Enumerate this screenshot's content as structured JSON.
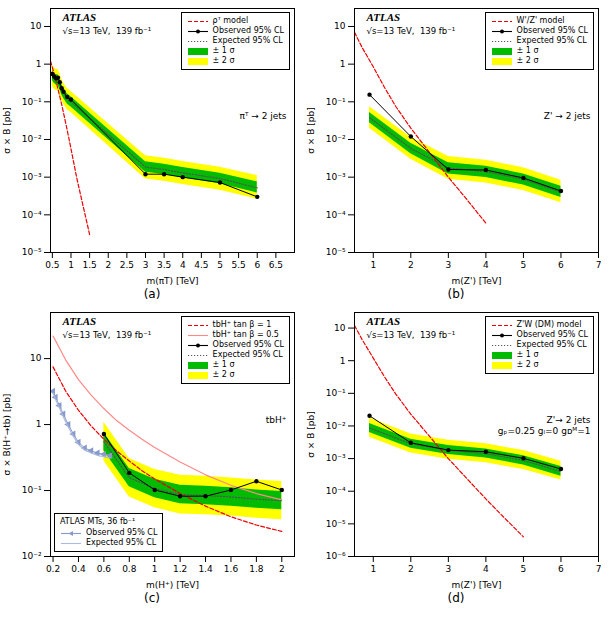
{
  "chart_data": [
    {
      "type": "line",
      "caption": "(a)",
      "annotations": [
        "ATLAS"
      ],
      "subtitle": "√s=13 TeV,  139 fb⁻¹",
      "process_label": [
        "πᵀ → 2 jets"
      ],
      "x_label": "m(πT) [TeV]",
      "y_label": "σ × B [pb]",
      "log": "y",
      "grid": false,
      "legend": "upper right",
      "xlim": [
        0.45,
        7.0
      ],
      "xticks": [
        0.5,
        1,
        1.5,
        2,
        2.5,
        3,
        3.5,
        4,
        4.5,
        5,
        5.5,
        6,
        6.5
      ],
      "ylim": [
        1e-05,
        30
      ],
      "yticks": [
        {
          "value": 1e-05,
          "label": "10⁻⁵"
        },
        {
          "value": 0.0001,
          "label": "10⁻⁴"
        },
        {
          "value": 0.001,
          "label": "10⁻³"
        },
        {
          "value": 0.01,
          "label": "10⁻²"
        },
        {
          "value": 0.1,
          "label": "10⁻¹"
        },
        1,
        10
      ],
      "series": [
        {
          "name": "ρᵀ model",
          "type": "line",
          "color": "#ee0000",
          "line_style": "dashed",
          "x": [
            0.45,
            0.55,
            0.65,
            0.75,
            0.85,
            0.95,
            1.05,
            1.15,
            1.3,
            1.5
          ],
          "values": [
            1.2,
            0.55,
            0.22,
            0.085,
            0.03,
            0.01,
            0.0032,
            0.001,
            0.00022,
            3e-05
          ]
        },
        {
          "name": "Observed 95% CL",
          "type": "line",
          "color": "#000000",
          "line_style": "solid",
          "marker": "circle",
          "x": [
            0.5,
            0.55,
            0.6,
            0.65,
            0.7,
            0.75,
            0.8,
            0.9,
            1.0,
            3.0,
            3.5,
            4.0,
            5.0,
            6.0
          ],
          "values": [
            0.55,
            0.47,
            0.42,
            0.44,
            0.33,
            0.23,
            0.185,
            0.135,
            0.115,
            0.0012,
            0.0012,
            0.001,
            0.00072,
            0.0003
          ]
        },
        {
          "name": "Expected 95% CL",
          "type": "line",
          "color": "#555555",
          "line_style": "dotted",
          "x": [
            0.5,
            0.55,
            0.6,
            0.65,
            0.7,
            0.75,
            0.8,
            0.9,
            1.0,
            3.0,
            3.5,
            4.0,
            5.0,
            6.0
          ],
          "values": [
            0.5,
            0.42,
            0.38,
            0.38,
            0.3,
            0.21,
            0.17,
            0.12,
            0.1,
            0.00185,
            0.0016,
            0.0013,
            0.00092,
            0.00052
          ]
        },
        {
          "name": "± 1 σ",
          "type": "band",
          "color": "#00bb00",
          "x": [
            0.5,
            0.55,
            0.6,
            0.65,
            0.7,
            0.75,
            0.8,
            0.9,
            1.0,
            3.0,
            3.5,
            4.0,
            5.0,
            6.0
          ],
          "lower": [
            0.37,
            0.31,
            0.28,
            0.28,
            0.22,
            0.155,
            0.124,
            0.088,
            0.073,
            0.00135,
            0.00117,
            0.00095,
            0.00067,
            0.00038
          ],
          "upper": [
            0.68,
            0.57,
            0.52,
            0.52,
            0.41,
            0.29,
            0.23,
            0.163,
            0.136,
            0.00255,
            0.0022,
            0.0018,
            0.00127,
            0.00075
          ]
        },
        {
          "name": "± 2 σ",
          "type": "band",
          "color": "#ffff00",
          "x": [
            0.5,
            0.55,
            0.6,
            0.65,
            0.7,
            0.75,
            0.8,
            0.9,
            1.0,
            3.0,
            3.5,
            4.0,
            5.0,
            6.0
          ],
          "lower": [
            0.26,
            0.22,
            0.2,
            0.2,
            0.16,
            0.11,
            0.088,
            0.062,
            0.052,
            0.0009,
            0.00078,
            0.00064,
            0.00045,
            0.00026
          ],
          "upper": [
            0.95,
            0.79,
            0.72,
            0.72,
            0.57,
            0.4,
            0.318,
            0.225,
            0.188,
            0.00368,
            0.00319,
            0.0026,
            0.00184,
            0.0011
          ]
        }
      ]
    },
    {
      "type": "line",
      "caption": "(b)",
      "annotations": [
        "ATLAS"
      ],
      "subtitle": "√s=13 TeV,  139 fb⁻¹",
      "process_label": [
        "Z' → 2 jets"
      ],
      "x_label": "m(Z') [TeV]",
      "y_label": "σ × B [pb]",
      "log": "y",
      "grid": false,
      "legend": "upper right",
      "xlim": [
        0.5,
        7.0
      ],
      "xticks": [
        1,
        2,
        3,
        4,
        5,
        6,
        7
      ],
      "ylim": [
        1e-05,
        30
      ],
      "yticks": [
        {
          "value": 1e-05,
          "label": "10⁻⁵"
        },
        {
          "value": 0.0001,
          "label": "10⁻⁴"
        },
        {
          "value": 0.001,
          "label": "10⁻³"
        },
        {
          "value": 0.01,
          "label": "10⁻²"
        },
        {
          "value": 0.1,
          "label": "10⁻¹"
        },
        1,
        10
      ],
      "series": [
        {
          "name": "W'/Z' model",
          "type": "line",
          "color": "#ee0000",
          "line_style": "dashed",
          "x": [
            0.5,
            0.7,
            1.0,
            1.3,
            1.6,
            2.0,
            2.5,
            3.0,
            3.5,
            4.0
          ],
          "values": [
            7.0,
            2.8,
            0.85,
            0.24,
            0.075,
            0.02,
            0.0045,
            0.001,
            0.00025,
            6e-05
          ]
        },
        {
          "name": "Observed 95% CL",
          "type": "line",
          "color": "#000000",
          "line_style": "solid",
          "marker": "circle",
          "x": [
            0.9,
            2.0,
            3.0,
            4.0,
            5.0,
            6.0
          ],
          "values": [
            0.155,
            0.012,
            0.0016,
            0.00155,
            0.00095,
            0.00043
          ]
        },
        {
          "name": "Expected 95% CL",
          "type": "line",
          "color": "#555555",
          "line_style": "dotted",
          "x": [
            0.9,
            2.0,
            3.0,
            4.0,
            5.0,
            6.0
          ],
          "values": [
            0.038,
            0.0058,
            0.00175,
            0.0014,
            0.00088,
            0.0004
          ]
        },
        {
          "name": "± 1 σ",
          "type": "band",
          "color": "#00bb00",
          "x": [
            0.9,
            2.0,
            3.0,
            4.0,
            5.0,
            6.0
          ],
          "lower": [
            0.028,
            0.0042,
            0.00122,
            0.00098,
            0.00062,
            0.00029
          ],
          "upper": [
            0.052,
            0.008,
            0.00243,
            0.00194,
            0.00122,
            0.00057
          ]
        },
        {
          "name": "± 2 σ",
          "type": "band",
          "color": "#ffff00",
          "x": [
            0.9,
            2.0,
            3.0,
            4.0,
            5.0,
            6.0
          ],
          "lower": [
            0.02,
            0.003,
            0.00088,
            0.0007,
            0.00044,
            0.00021
          ],
          "upper": [
            0.074,
            0.0114,
            0.00352,
            0.00281,
            0.00177,
            0.00083
          ]
        }
      ]
    },
    {
      "type": "line",
      "caption": "(c)",
      "annotations": [
        "ATLAS"
      ],
      "subtitle": "√s=13 TeV,  139 fb⁻¹",
      "process_label": [
        "tbH⁺"
      ],
      "x_label": "m(H⁺) [TeV]",
      "y_label": "σ × B(H⁺→tb) [pb]",
      "log": "y",
      "grid": false,
      "legend": "upper right",
      "xlim": [
        0.18,
        2.1
      ],
      "xticks": [
        0.2,
        0.4,
        0.6,
        0.8,
        1,
        1.2,
        1.4,
        1.6,
        1.8,
        2
      ],
      "ylim": [
        0.01,
        50
      ],
      "yticks": [
        {
          "value": 0.01,
          "label": "10⁻²"
        },
        {
          "value": 0.1,
          "label": "10⁻¹"
        },
        1,
        10
      ],
      "series": [
        {
          "name": "tbH⁺ tan β = 1",
          "type": "line",
          "color": "#ee0000",
          "line_style": "dashed",
          "x": [
            0.2,
            0.3,
            0.4,
            0.5,
            0.6,
            0.7,
            0.8,
            0.9,
            1.0,
            1.2,
            1.4,
            1.6,
            1.8,
            2.0
          ],
          "values": [
            7.5,
            3.2,
            1.65,
            0.95,
            0.6,
            0.4,
            0.28,
            0.2,
            0.15,
            0.09,
            0.058,
            0.04,
            0.03,
            0.024
          ]
        },
        {
          "name": "tbH⁺ tan β = 0.5",
          "type": "line",
          "color": "#ff8888",
          "line_style": "solid",
          "x": [
            0.2,
            0.3,
            0.4,
            0.5,
            0.6,
            0.7,
            0.8,
            0.9,
            1.0,
            1.2,
            1.4,
            1.6,
            1.8,
            2.0
          ],
          "values": [
            22.0,
            9.5,
            4.8,
            2.8,
            1.75,
            1.15,
            0.82,
            0.6,
            0.45,
            0.27,
            0.173,
            0.12,
            0.09,
            0.072
          ]
        },
        {
          "name": "Observed 95% CL",
          "type": "line",
          "color": "#000000",
          "line_style": "solid",
          "marker": "circle",
          "x": [
            0.6,
            0.8,
            1.0,
            1.2,
            1.4,
            1.6,
            1.8,
            2.0
          ],
          "values": [
            0.72,
            0.185,
            0.102,
            0.082,
            0.082,
            0.102,
            0.138,
            0.102
          ]
        },
        {
          "name": "Expected 95% CL",
          "type": "line",
          "color": "#555555",
          "line_style": "dotted",
          "x": [
            0.6,
            0.8,
            1.0,
            1.2,
            1.4,
            1.6,
            1.8,
            2.0
          ],
          "values": [
            0.55,
            0.157,
            0.107,
            0.087,
            0.084,
            0.08,
            0.074,
            0.07
          ]
        },
        {
          "name": "± 1 σ",
          "type": "band",
          "color": "#00bb00",
          "x": [
            0.6,
            0.8,
            1.0,
            1.2,
            1.4,
            1.6,
            1.8,
            2.0
          ],
          "lower": [
            0.4,
            0.114,
            0.078,
            0.063,
            0.061,
            0.058,
            0.054,
            0.051
          ],
          "upper": [
            0.76,
            0.216,
            0.148,
            0.12,
            0.116,
            0.11,
            0.102,
            0.097
          ]
        },
        {
          "name": "± 2 σ",
          "type": "band",
          "color": "#ffff00",
          "x": [
            0.6,
            0.8,
            1.0,
            1.2,
            1.4,
            1.6,
            1.8,
            2.0
          ],
          "lower": [
            0.28,
            0.08,
            0.055,
            0.044,
            0.043,
            0.041,
            0.038,
            0.036
          ],
          "upper": [
            1.08,
            0.305,
            0.209,
            0.17,
            0.164,
            0.155,
            0.144,
            0.137
          ]
        },
        {
          "name": "Observed 95% CL",
          "type": "line",
          "color": "#8899cc",
          "line_style": "solid",
          "marker": "triangle-left",
          "legend_group": "ATLAS MTs, 36 fb⁻¹",
          "x": [
            0.2,
            0.22,
            0.25,
            0.28,
            0.32,
            0.36,
            0.4,
            0.45,
            0.5,
            0.55,
            0.6,
            0.65
          ],
          "values": [
            3.2,
            2.6,
            1.95,
            1.45,
            1.0,
            0.72,
            0.54,
            0.44,
            0.4,
            0.37,
            0.355,
            0.34
          ]
        },
        {
          "name": "Expected 95% CL",
          "type": "line",
          "color": "#aabbdd",
          "line_style": "solid",
          "legend_group": "ATLAS MTs, 36 fb⁻¹",
          "x": [
            0.2,
            0.22,
            0.25,
            0.28,
            0.32,
            0.36,
            0.4,
            0.45,
            0.5,
            0.55,
            0.6,
            0.65
          ],
          "values": [
            3.0,
            2.4,
            1.8,
            1.32,
            0.92,
            0.66,
            0.5,
            0.41,
            0.37,
            0.34,
            0.325,
            0.31
          ]
        }
      ]
    },
    {
      "type": "line",
      "caption": "(d)",
      "annotations": [
        "ATLAS"
      ],
      "subtitle": "√s=13 TeV,  139 fb⁻¹",
      "process_label": [
        "Z'→ 2 jets",
        "gₚ=0.25 gₗ=0 gᴅᴹ=1"
      ],
      "x_label": "m(Z') [TeV]",
      "y_label": "σ × B [pb]",
      "log": "y",
      "grid": false,
      "legend": "upper right",
      "xlim": [
        0.5,
        7.0
      ],
      "xticks": [
        1,
        2,
        3,
        4,
        5,
        6,
        7
      ],
      "ylim": [
        1e-06,
        30
      ],
      "yticks": [
        {
          "value": 1e-06,
          "label": "10⁻⁶"
        },
        {
          "value": 1e-05,
          "label": "10⁻⁵"
        },
        {
          "value": 0.0001,
          "label": "10⁻⁴"
        },
        {
          "value": 0.001,
          "label": "10⁻³"
        },
        {
          "value": 0.01,
          "label": "10⁻²"
        },
        {
          "value": 0.1,
          "label": "10⁻¹"
        },
        1,
        10
      ],
      "series": [
        {
          "name": "Z'W (DM) model",
          "type": "line",
          "color": "#ee0000",
          "line_style": "dashed",
          "x": [
            0.5,
            0.7,
            1.0,
            1.3,
            1.6,
            2.0,
            2.5,
            3.0,
            3.5,
            4.0,
            4.5,
            5.0
          ],
          "values": [
            12.0,
            4.5,
            1.2,
            0.32,
            0.095,
            0.023,
            0.0048,
            0.001,
            0.00024,
            5.8e-05,
            1.5e-05,
            4e-06
          ]
        },
        {
          "name": "Observed 95% CL",
          "type": "line",
          "color": "#000000",
          "line_style": "solid",
          "marker": "circle",
          "x": [
            0.9,
            2.0,
            3.0,
            4.0,
            5.0,
            6.0
          ],
          "values": [
            0.0205,
            0.00305,
            0.00182,
            0.00162,
            0.00102,
            0.00048
          ]
        },
        {
          "name": "Expected 95% CL",
          "type": "line",
          "color": "#555555",
          "line_style": "dotted",
          "x": [
            0.9,
            2.0,
            3.0,
            4.0,
            5.0,
            6.0
          ],
          "values": [
            0.0087,
            0.00284,
            0.00182,
            0.00142,
            0.00088,
            0.0004
          ]
        },
        {
          "name": "± 1 σ",
          "type": "band",
          "color": "#00bb00",
          "x": [
            0.9,
            2.0,
            3.0,
            4.0,
            5.0,
            6.0
          ],
          "lower": [
            0.00634,
            0.00207,
            0.00133,
            0.00104,
            0.00064,
            0.00029
          ],
          "upper": [
            0.012,
            0.00392,
            0.00252,
            0.00196,
            0.00122,
            0.00057
          ]
        },
        {
          "name": "± 2 σ",
          "type": "band",
          "color": "#ffff00",
          "x": [
            0.9,
            2.0,
            3.0,
            4.0,
            5.0,
            6.0
          ],
          "lower": [
            0.00454,
            0.00148,
            0.00095,
            0.00074,
            0.00046,
            0.00022
          ],
          "upper": [
            0.0174,
            0.00568,
            0.00364,
            0.00284,
            0.00176,
            0.00083
          ]
        }
      ]
    }
  ]
}
